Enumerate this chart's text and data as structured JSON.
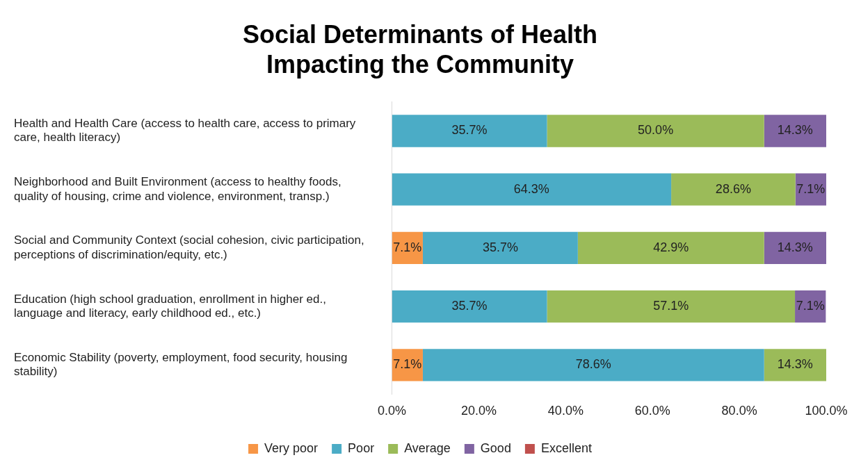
{
  "chart_data": {
    "type": "bar",
    "orientation": "horizontal",
    "stacked": true,
    "title": "Social Determinants of Health Impacting the Community",
    "categories": [
      "Health and Health Care (access to health care, access to primary care, health literacy)",
      "Neighborhood and Built Environment (access to healthy foods, quality of housing, crime and violence, environment, transp.)",
      "Social and Community Context (social cohesion, civic participation, perceptions of discrimination/equity, etc.)",
      "Education (high school graduation, enrollment in higher ed., language and literacy, early childhood ed., etc.)",
      "Economic Stability (poverty, employment, food security, housing stability)"
    ],
    "series": [
      {
        "name": "Very poor",
        "color": "#f79646",
        "values": [
          null,
          null,
          7.1,
          null,
          7.1
        ],
        "value_labels": [
          null,
          null,
          "7.1%",
          null,
          "7.1%"
        ]
      },
      {
        "name": "Poor",
        "color": "#4bacc6",
        "values": [
          35.7,
          64.3,
          35.7,
          35.7,
          78.6
        ],
        "value_labels": [
          "35.7%",
          "64.3%",
          "35.7%",
          "35.7%",
          "78.6%"
        ]
      },
      {
        "name": "Average",
        "color": "#9bbb59",
        "values": [
          50.0,
          28.6,
          42.9,
          57.1,
          14.3
        ],
        "value_labels": [
          "50.0%",
          "28.6%",
          "42.9%",
          "57.1%",
          "14.3%"
        ]
      },
      {
        "name": "Good",
        "color": "#8064a2",
        "values": [
          14.3,
          7.1,
          14.3,
          7.1,
          null
        ],
        "value_labels": [
          "14.3%",
          "7.1%",
          "14.3%",
          "7.1%",
          null
        ]
      },
      {
        "name": "Excellent",
        "color": "#c0504d",
        "values": [
          null,
          null,
          null,
          null,
          null
        ]
      }
    ],
    "xlim": [
      0,
      100
    ],
    "xticks": [
      {
        "value": 0,
        "label": "0.0%"
      },
      {
        "value": 20,
        "label": "20.0%"
      },
      {
        "value": 40,
        "label": "40.0%"
      },
      {
        "value": 60,
        "label": "60.0%"
      },
      {
        "value": 80,
        "label": "80.0%"
      },
      {
        "value": 100,
        "label": "100.0%"
      }
    ],
    "grid": false,
    "legend": "bottom"
  }
}
